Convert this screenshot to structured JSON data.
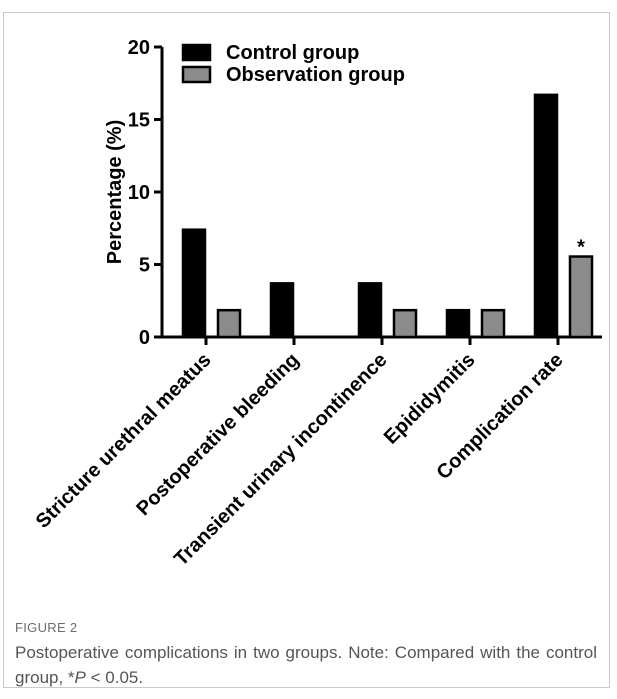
{
  "figure": {
    "label": "FIGURE 2",
    "caption_main": "Postoperative complications in two groups. Note: Compared with the control group, *",
    "caption_p": "P",
    "caption_tail": " < 0.05."
  },
  "chart_data": {
    "type": "bar",
    "title": "",
    "xlabel": "",
    "ylabel": "Percentage (%)",
    "ylim": [
      0,
      20
    ],
    "yticks": [
      0,
      5,
      10,
      15,
      20
    ],
    "categories": [
      "Stricture urethral meatus",
      "Postoperative bleeding",
      "Transient urinary incontinence",
      "Epididymitis",
      "Complication rate"
    ],
    "series": [
      {
        "name": "Control group",
        "color": "#000000",
        "values": [
          7.4,
          3.7,
          3.7,
          1.85,
          16.7
        ]
      },
      {
        "name": "Observation group",
        "color": "#8c8c8c",
        "values": [
          1.85,
          0,
          1.85,
          1.85,
          5.55
        ]
      }
    ],
    "annotations": [
      {
        "category_index": 4,
        "series_index": 1,
        "text": "*"
      }
    ],
    "legend_position": "top"
  }
}
